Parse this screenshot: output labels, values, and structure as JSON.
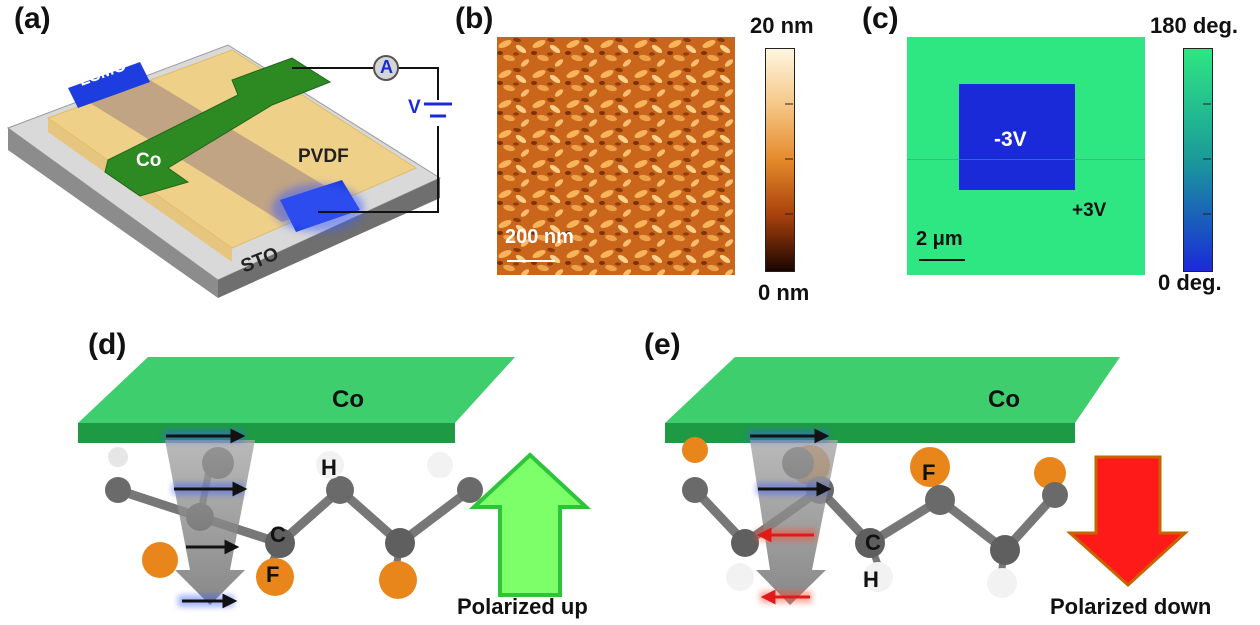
{
  "panels": {
    "a": {
      "label": "(a)",
      "lsmo": "LSMO",
      "co": "Co",
      "pvdf": "PVDF",
      "sto": "STO",
      "ammeter": "A",
      "voltage": "V"
    },
    "b": {
      "label": "(b)",
      "scale_top": "20 nm",
      "scale_bottom": "0 nm",
      "scalebar": "200 nm",
      "colors": {
        "high": "#fff6e0",
        "mid": "#e58a2a",
        "low": "#1a0500"
      }
    },
    "c": {
      "label": "(c)",
      "scale_top": "180 deg.",
      "scale_bottom": "0 deg.",
      "inner_label": "-3V",
      "outer_label": "+3V",
      "scalebar": "2 μm",
      "colors": {
        "outer": "#2ee682",
        "inner": "#1a2ad8"
      }
    },
    "d": {
      "label": "(d)",
      "electrode": "Co",
      "atom_h": "H",
      "atom_c": "C",
      "atom_f": "F",
      "caption": "Polarized up"
    },
    "e": {
      "label": "(e)",
      "electrode": "Co",
      "atom_f": "F",
      "atom_c": "C",
      "atom_h": "H",
      "caption": "Polarized down"
    }
  }
}
